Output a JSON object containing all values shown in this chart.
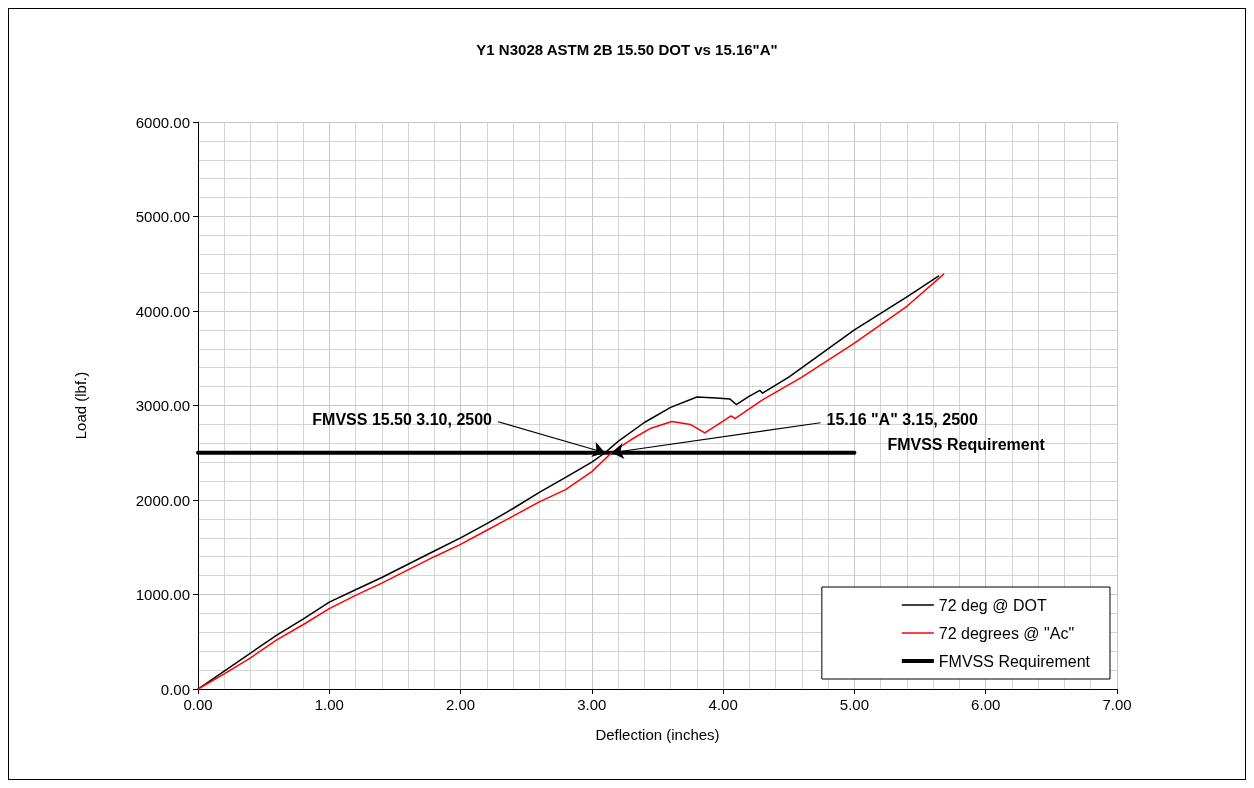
{
  "chart_data": {
    "type": "line",
    "title": "Y1 N3028 ASTM 2B 15.50 DOT vs 15.16\"A\"",
    "xlabel": "Deflection (inches)",
    "ylabel": "Load (lbf.)",
    "xlim": [
      0,
      7
    ],
    "ylim": [
      0,
      6000
    ],
    "xticks": [
      {
        "value": 0,
        "label": "0.00"
      },
      {
        "value": 1,
        "label": "1.00"
      },
      {
        "value": 2,
        "label": "2.00"
      },
      {
        "value": 3,
        "label": "3.00"
      },
      {
        "value": 4,
        "label": "4.00"
      },
      {
        "value": 5,
        "label": "5.00"
      },
      {
        "value": 6,
        "label": "6.00"
      },
      {
        "value": 7,
        "label": "7.00"
      }
    ],
    "yticks": [
      {
        "value": 0,
        "label": "0.00"
      },
      {
        "value": 1000,
        "label": "1000.00"
      },
      {
        "value": 2000,
        "label": "2000.00"
      },
      {
        "value": 3000,
        "label": "3000.00"
      },
      {
        "value": 4000,
        "label": "4000.00"
      },
      {
        "value": 5000,
        "label": "5000.00"
      },
      {
        "value": 6000,
        "label": "6000.00"
      }
    ],
    "grid": true,
    "legend": "bottom right",
    "marker": "none",
    "series": [
      {
        "name": "72 deg @ DOT",
        "color": "#000000",
        "x": [
          0,
          0.2,
          0.4,
          0.6,
          0.8,
          1.0,
          1.2,
          1.4,
          1.6,
          1.8,
          2.0,
          2.2,
          2.4,
          2.6,
          2.8,
          3.0,
          3.1,
          3.2,
          3.4,
          3.6,
          3.8,
          3.95,
          4.05,
          4.1,
          4.2,
          4.28,
          4.3,
          4.5,
          5.0,
          5.4,
          5.64
        ],
        "values": [
          0,
          190,
          380,
          570,
          740,
          920,
          1050,
          1180,
          1320,
          1460,
          1600,
          1750,
          1910,
          2080,
          2240,
          2400,
          2500,
          2620,
          2820,
          2980,
          3090,
          3080,
          3070,
          3010,
          3100,
          3160,
          3130,
          3300,
          3800,
          4150,
          4370
        ]
      },
      {
        "name": "72 degrees @ \"Ac\"",
        "color": "#ff0000",
        "x": [
          0,
          0.2,
          0.4,
          0.6,
          0.8,
          1.0,
          1.2,
          1.4,
          1.6,
          1.8,
          2.0,
          2.2,
          2.4,
          2.6,
          2.8,
          3.0,
          3.15,
          3.3,
          3.45,
          3.61,
          3.75,
          3.86,
          3.95,
          4.06,
          4.09,
          4.3,
          4.6,
          5.0,
          5.4,
          5.68
        ],
        "values": [
          0,
          160,
          330,
          520,
          680,
          850,
          990,
          1120,
          1260,
          1400,
          1530,
          1680,
          1830,
          1980,
          2110,
          2300,
          2500,
          2640,
          2760,
          2830,
          2800,
          2710,
          2790,
          2890,
          2860,
          3060,
          3300,
          3660,
          4050,
          4390
        ]
      },
      {
        "name": "FMVSS Requirement",
        "color": "#000000",
        "x": [
          0,
          5
        ],
        "values": [
          2500,
          2500
        ]
      }
    ],
    "annotations": [
      {
        "text": "FMVSS 15.50 3.10, 2500",
        "x": 3.1,
        "y": 2500
      },
      {
        "text": "15.16 \"A\" 3.15, 2500",
        "x": 3.15,
        "y": 2500
      },
      {
        "text": "FMVSS Requirement",
        "x": 5,
        "y": 2500
      }
    ]
  }
}
